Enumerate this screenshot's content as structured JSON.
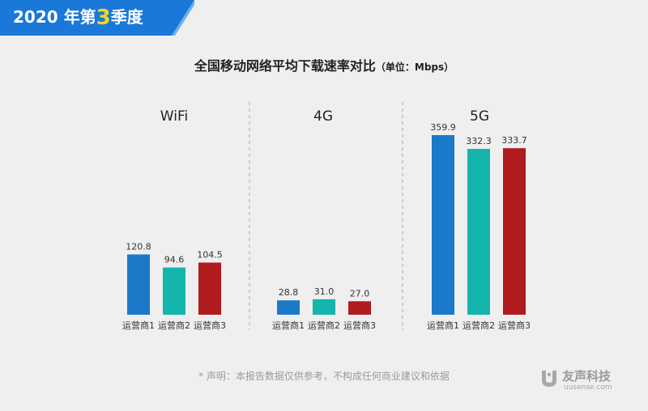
{
  "banner": {
    "text_prefix": "2020 年第",
    "quarter": "3",
    "text_suffix": "季度"
  },
  "header": {
    "title": "全国移动网络平均下载速率对比",
    "unit": "（单位：Mbps）"
  },
  "chart_data": {
    "type": "bar",
    "title": "全国移动网络平均下载速率对比",
    "unit": "Mbps",
    "groups": [
      "WiFi",
      "4G",
      "5G"
    ],
    "categories": [
      "运营商1",
      "运营商2",
      "运营商3"
    ],
    "colors": [
      "#1b79c9",
      "#13b5ac",
      "#b01b1e"
    ],
    "values": [
      [
        120.8,
        94.6,
        104.5
      ],
      [
        28.8,
        31.0,
        27.0
      ],
      [
        359.9,
        332.3,
        333.7
      ]
    ],
    "value_labels": [
      [
        "120.8",
        "94.6",
        "104.5"
      ],
      [
        "28.8",
        "31.0",
        "27.0"
      ],
      [
        "359.9",
        "332.3",
        "333.7"
      ]
    ],
    "dividers": "dashed"
  },
  "footer": {
    "disclaimer": "* 声明：本报告数据仅供参考，不构成任何商业建议和依据",
    "brand_name": "友声科技",
    "brand_url": "uusense.com"
  }
}
